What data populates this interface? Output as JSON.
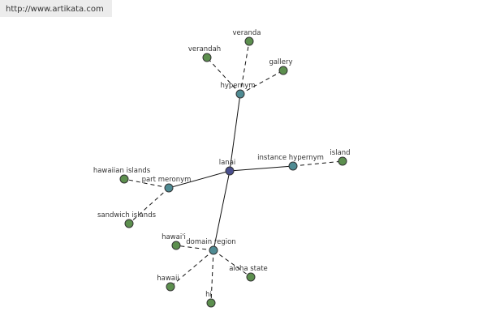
{
  "header": {
    "url": "http://www.artikata.com"
  },
  "nodes": [
    {
      "label": "lanai"
    },
    {
      "label": "hypernym"
    },
    {
      "label": "instance hypernym"
    },
    {
      "label": "part meronym"
    },
    {
      "label": "domain region"
    },
    {
      "label": "veranda"
    },
    {
      "label": "verandah"
    },
    {
      "label": "gallery"
    },
    {
      "label": "island"
    },
    {
      "label": "hawaiian islands"
    },
    {
      "label": "sandwich islands"
    },
    {
      "label": "hawai'i"
    },
    {
      "label": "hawaii"
    },
    {
      "label": "hi"
    },
    {
      "label": "aloha state"
    }
  ]
}
